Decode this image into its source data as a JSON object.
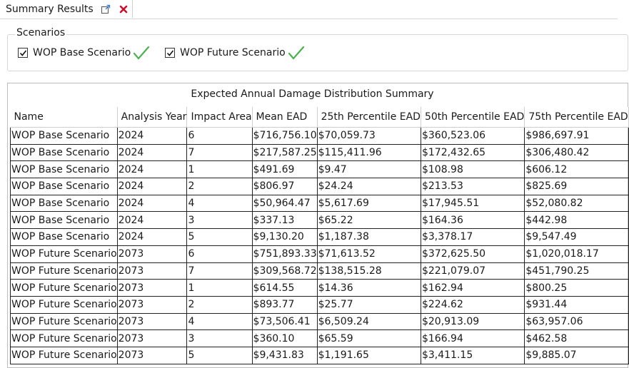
{
  "tab": {
    "title": "Summary Results"
  },
  "scenarios": {
    "label": "Scenarios",
    "items": [
      {
        "label": "WOP Base Scenario",
        "checked": true
      },
      {
        "label": "WOP Future Scenario",
        "checked": true
      }
    ]
  },
  "grid": {
    "title": "Expected Annual Damage Distribution Summary",
    "columns": [
      "Name",
      "Analysis Year",
      "Impact Area",
      "Mean EAD",
      "25th Percentile EAD",
      "50th Percentile EAD",
      "75th Percentile EAD"
    ],
    "rows": [
      [
        "WOP Base Scenario",
        "2024",
        "6",
        "$716,756.10",
        "$70,059.73",
        "$360,523.06",
        "$986,697.91"
      ],
      [
        "WOP Base Scenario",
        "2024",
        "7",
        "$217,587.25",
        "$115,411.96",
        "$172,432.65",
        "$306,480.42"
      ],
      [
        "WOP Base Scenario",
        "2024",
        "1",
        "$491.69",
        "$9.47",
        "$108.98",
        "$606.12"
      ],
      [
        "WOP Base Scenario",
        "2024",
        "2",
        "$806.97",
        "$24.24",
        "$213.53",
        "$825.69"
      ],
      [
        "WOP Base Scenario",
        "2024",
        "4",
        "$50,964.47",
        "$5,617.69",
        "$17,945.51",
        "$52,080.82"
      ],
      [
        "WOP Base Scenario",
        "2024",
        "3",
        "$337.13",
        "$65.22",
        "$164.36",
        "$442.98"
      ],
      [
        "WOP Base Scenario",
        "2024",
        "5",
        "$9,130.20",
        "$1,187.38",
        "$3,378.17",
        "$9,547.49"
      ],
      [
        "WOP Future Scenario",
        "2073",
        "6",
        "$751,893.33",
        "$71,613.52",
        "$372,625.50",
        "$1,020,018.17"
      ],
      [
        "WOP Future Scenario",
        "2073",
        "7",
        "$309,568.72",
        "$138,515.28",
        "$221,079.07",
        "$451,790.25"
      ],
      [
        "WOP Future Scenario",
        "2073",
        "1",
        "$614.55",
        "$14.36",
        "$162.94",
        "$800.25"
      ],
      [
        "WOP Future Scenario",
        "2073",
        "2",
        "$893.77",
        "$25.77",
        "$224.62",
        "$931.44"
      ],
      [
        "WOP Future Scenario",
        "2073",
        "4",
        "$73,506.41",
        "$6,509.24",
        "$20,913.09",
        "$63,957.06"
      ],
      [
        "WOP Future Scenario",
        "2073",
        "3",
        "$360.10",
        "$65.59",
        "$166.94",
        "$462.58"
      ],
      [
        "WOP Future Scenario",
        "2073",
        "5",
        "$9,431.83",
        "$1,191.65",
        "$3,411.15",
        "$9,885.07"
      ]
    ]
  },
  "icons": {
    "popout": "popout-icon",
    "close": "close-icon",
    "check": "check-icon",
    "valid": "valid-checkmark-icon"
  },
  "colors": {
    "close": "#c8102e",
    "valid": "#4caf50",
    "popout": "#3a7bd5"
  }
}
